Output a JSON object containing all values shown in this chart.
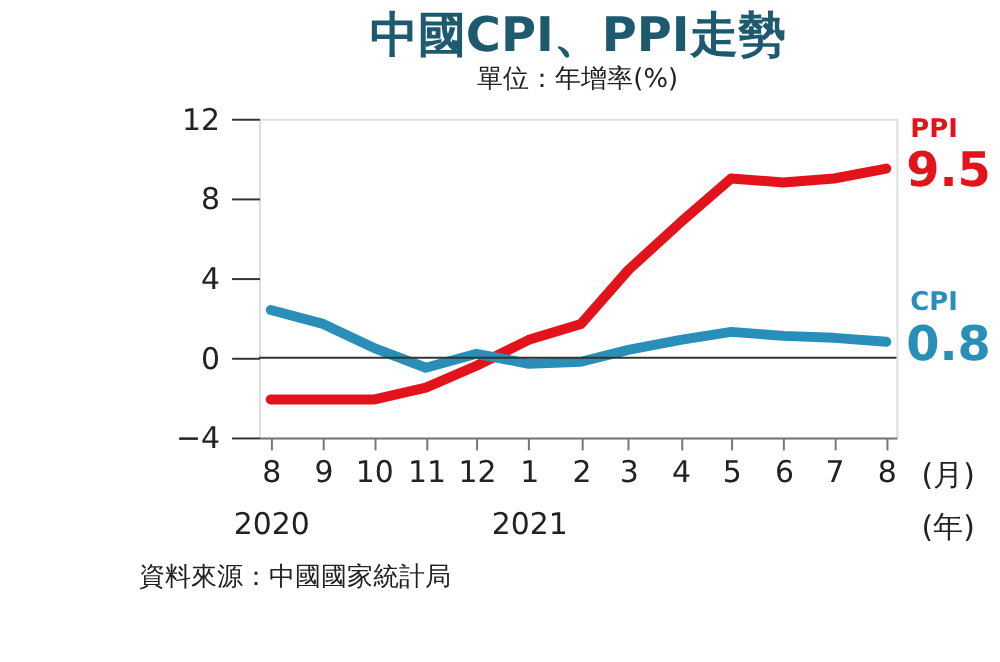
{
  "chart_data": {
    "type": "line",
    "title": "中國CPI、PPI走勢",
    "subtitle": "單位：年增率(%)",
    "x": [
      "2020-08",
      "2020-09",
      "2020-10",
      "2020-11",
      "2020-12",
      "2021-01",
      "2021-02",
      "2021-03",
      "2021-04",
      "2021-05",
      "2021-06",
      "2021-07",
      "2021-08"
    ],
    "xlim": [
      "2020-07-25",
      "2021-08-07"
    ],
    "xticks": [
      {
        "value": "2020-08",
        "label": "8\n2020"
      },
      {
        "value": "2020-09",
        "label": "9"
      },
      {
        "value": "2020-10",
        "label": "10"
      },
      {
        "value": "2020-11",
        "label": "11"
      },
      {
        "value": "2020-12",
        "label": "12"
      },
      {
        "value": "2021-01",
        "label": "1\n2021"
      },
      {
        "value": "2021-02",
        "label": "2"
      },
      {
        "value": "2021-03",
        "label": "3"
      },
      {
        "value": "2021-04",
        "label": "4"
      },
      {
        "value": "2021-05",
        "label": "5"
      },
      {
        "value": "2021-06",
        "label": "6"
      },
      {
        "value": "2021-07",
        "label": "7"
      },
      {
        "value": "2021-08",
        "label": "8"
      }
    ],
    "series": [
      {
        "name": "PPI",
        "color": "#e3131b",
        "values": [
          -2.1,
          -2.1,
          -2.1,
          -1.5,
          -0.4,
          0.9,
          1.7,
          4.4,
          6.8,
          9.0,
          8.8,
          9.0,
          9.5
        ],
        "value_labels": [
          null,
          null,
          null,
          null,
          null,
          null,
          null,
          null,
          null,
          null,
          null,
          null,
          "9.5"
        ]
      },
      {
        "name": "CPI",
        "color": "#2a8fb8",
        "values": [
          2.4,
          1.7,
          0.5,
          -0.5,
          0.2,
          -0.3,
          -0.2,
          0.4,
          0.9,
          1.3,
          1.1,
          1.0,
          0.8
        ],
        "value_labels": [
          null,
          null,
          null,
          null,
          null,
          null,
          null,
          null,
          null,
          null,
          null,
          null,
          "0.8"
        ]
      }
    ],
    "ylim": [
      -4,
      12
    ],
    "yticks": [
      -4,
      0,
      4,
      8,
      12
    ],
    "ref_lines": [
      {
        "axis": "y",
        "value": 0,
        "color": "#333333"
      }
    ],
    "grid": false,
    "legend": false,
    "line_style": "solid",
    "marker": "none",
    "annotations": [
      "(月)",
      "(年)",
      "資料來源：中國國家統計局"
    ]
  }
}
